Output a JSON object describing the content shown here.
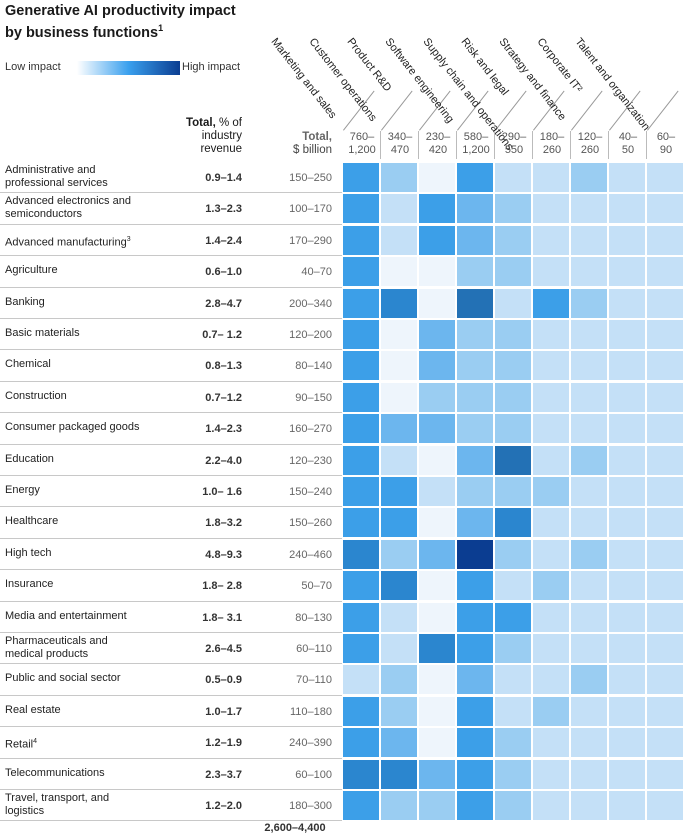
{
  "title": "Generative AI productivity impact by business functions",
  "title_footnote": "1",
  "legend": {
    "low": "Low impact",
    "high": "High impact"
  },
  "headers": {
    "total_bold": "Total,",
    "total_rest": " % of industry revenue",
    "sb_bold": "Total,",
    "sb_rest": "$ billion"
  },
  "grand_total": "2,600–4,400",
  "palette": [
    "#eef5fc",
    "#c4e0f7",
    "#9acdf2",
    "#6cb6ee",
    "#3c9fe8",
    "#2b86cf",
    "#2371b5",
    "#0b3d91"
  ],
  "chart_data": {
    "type": "heatmap",
    "title": "Generative AI productivity impact by business functions",
    "legend": [
      "Low impact",
      "High impact"
    ],
    "columns": [
      {
        "name": "Marketing and sales",
        "range": [
          "760–",
          "1,200"
        ]
      },
      {
        "name": "Customer operations",
        "range": [
          "340–",
          "470"
        ]
      },
      {
        "name": "Product R&D",
        "range": [
          "230–",
          "420"
        ]
      },
      {
        "name": "Software engineering",
        "range": [
          "580–",
          "1,200"
        ]
      },
      {
        "name": "Supply chain and operations",
        "range": [
          "290–",
          "550"
        ]
      },
      {
        "name": "Risk and legal",
        "range": [
          "180–",
          "260"
        ]
      },
      {
        "name": "Strategy and finance",
        "range": [
          "120–",
          "260"
        ]
      },
      {
        "name": "Corporate IT²",
        "range": [
          "40–",
          "50"
        ]
      },
      {
        "name": "Talent and organization",
        "range": [
          "60–",
          "90"
        ]
      }
    ],
    "rows": [
      {
        "industry": "Administrative and professional services",
        "note": "",
        "total_pct": "0.9–1.4",
        "total_billion": "150–250",
        "levels": [
          4,
          2,
          0,
          4,
          1,
          1,
          2,
          1,
          1
        ]
      },
      {
        "industry": "Advanced electronics and semiconductors",
        "note": "",
        "total_pct": "1.3–2.3",
        "total_billion": "100–170",
        "levels": [
          4,
          1,
          4,
          3,
          2,
          1,
          1,
          1,
          1
        ]
      },
      {
        "industry": "Advanced manufacturing",
        "note": "3",
        "total_pct": "1.4–2.4",
        "total_billion": "170–290",
        "levels": [
          4,
          1,
          4,
          3,
          2,
          1,
          1,
          1,
          1
        ]
      },
      {
        "industry": "Agriculture",
        "note": "",
        "total_pct": "0.6–1.0",
        "total_billion": "40–70",
        "levels": [
          4,
          0,
          0,
          2,
          2,
          1,
          1,
          1,
          1
        ]
      },
      {
        "industry": "Banking",
        "note": "",
        "total_pct": "2.8–4.7",
        "total_billion": "200–340",
        "levels": [
          4,
          5,
          0,
          6,
          1,
          4,
          2,
          1,
          1
        ]
      },
      {
        "industry": "Basic materials",
        "note": "",
        "total_pct": "0.7– 1.2",
        "total_billion": "120–200",
        "levels": [
          4,
          0,
          3,
          2,
          2,
          1,
          1,
          1,
          1
        ]
      },
      {
        "industry": "Chemical",
        "note": "",
        "total_pct": "0.8–1.3",
        "total_billion": "80–140",
        "levels": [
          4,
          0,
          3,
          2,
          2,
          1,
          1,
          1,
          1
        ]
      },
      {
        "industry": "Construction",
        "note": "",
        "total_pct": "0.7–1.2",
        "total_billion": "90–150",
        "levels": [
          4,
          0,
          2,
          2,
          2,
          1,
          1,
          1,
          1
        ]
      },
      {
        "industry": "Consumer packaged goods",
        "note": "",
        "total_pct": "1.4–2.3",
        "total_billion": "160–270",
        "levels": [
          4,
          3,
          3,
          2,
          2,
          1,
          1,
          1,
          1
        ]
      },
      {
        "industry": "Education",
        "note": "",
        "total_pct": "2.2–4.0",
        "total_billion": "120–230",
        "levels": [
          4,
          1,
          0,
          3,
          6,
          1,
          2,
          1,
          1
        ]
      },
      {
        "industry": "Energy",
        "note": "",
        "total_pct": "1.0– 1.6",
        "total_billion": "150–240",
        "levels": [
          4,
          4,
          1,
          2,
          2,
          2,
          1,
          1,
          1
        ]
      },
      {
        "industry": "Healthcare",
        "note": "",
        "total_pct": "1.8–3.2",
        "total_billion": "150–260",
        "levels": [
          4,
          4,
          0,
          3,
          5,
          1,
          1,
          1,
          1
        ]
      },
      {
        "industry": "High tech",
        "note": "",
        "total_pct": "4.8–9.3",
        "total_billion": "240–460",
        "levels": [
          5,
          2,
          3,
          7,
          2,
          1,
          2,
          1,
          1
        ]
      },
      {
        "industry": "Insurance",
        "note": "",
        "total_pct": "1.8– 2.8",
        "total_billion": "50–70",
        "levels": [
          4,
          5,
          0,
          4,
          1,
          2,
          1,
          1,
          1
        ]
      },
      {
        "industry": "Media and entertainment",
        "note": "",
        "total_pct": "1.8– 3.1",
        "total_billion": "80–130",
        "levels": [
          4,
          1,
          0,
          4,
          4,
          1,
          1,
          1,
          1
        ]
      },
      {
        "industry": "Pharmaceuticals and medical products",
        "note": "",
        "total_pct": "2.6–4.5",
        "total_billion": "60–110",
        "levels": [
          4,
          1,
          5,
          4,
          2,
          1,
          1,
          1,
          1
        ]
      },
      {
        "industry": "Public and social sector",
        "note": "",
        "total_pct": "0.5–0.9",
        "total_billion": "70–110",
        "levels": [
          1,
          2,
          0,
          3,
          1,
          1,
          2,
          1,
          1
        ]
      },
      {
        "industry": "Real estate",
        "note": "",
        "total_pct": "1.0–1.7",
        "total_billion": "110–180",
        "levels": [
          4,
          2,
          0,
          4,
          1,
          2,
          1,
          1,
          1
        ]
      },
      {
        "industry": "Retail",
        "note": "4",
        "total_pct": "1.2–1.9",
        "total_billion": "240–390",
        "levels": [
          4,
          3,
          0,
          4,
          2,
          1,
          1,
          1,
          1
        ]
      },
      {
        "industry": "Telecommunications",
        "note": "",
        "total_pct": "2.3–3.7",
        "total_billion": "60–100",
        "levels": [
          5,
          5,
          3,
          4,
          2,
          1,
          1,
          1,
          1
        ]
      },
      {
        "industry": "Travel, transport, and logistics",
        "note": "",
        "total_pct": "1.2–2.0",
        "total_billion": "180–300",
        "levels": [
          4,
          2,
          2,
          4,
          2,
          1,
          1,
          1,
          1
        ]
      }
    ]
  }
}
